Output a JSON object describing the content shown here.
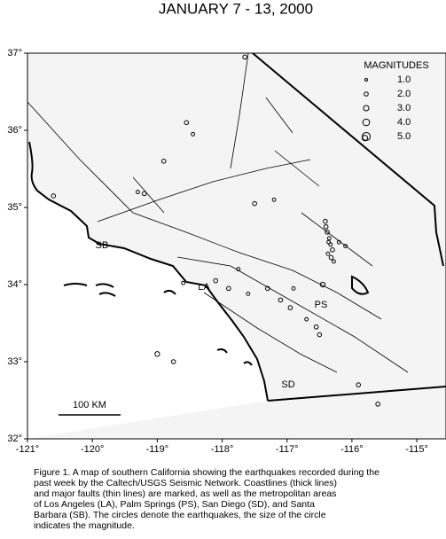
{
  "chart_data": {
    "type": "scatter",
    "title": "JANUARY 7 - 13, 2000",
    "xlim": [
      -121,
      -114.55
    ],
    "ylim": [
      32,
      37
    ],
    "xticks": [
      {
        "value": -121,
        "label": "-121°"
      },
      {
        "value": -120,
        "label": "-120°"
      },
      {
        "value": -119,
        "label": "-119°"
      },
      {
        "value": -118,
        "label": "-118°"
      },
      {
        "value": -117,
        "label": "-117°"
      },
      {
        "value": -116,
        "label": "-116°"
      },
      {
        "value": -115,
        "label": "-115°"
      }
    ],
    "yticks": [
      {
        "value": 32,
        "label": "32°"
      },
      {
        "value": 33,
        "label": "33°"
      },
      {
        "value": 34,
        "label": "34°"
      },
      {
        "value": 35,
        "label": "35°"
      },
      {
        "value": 36,
        "label": "36°"
      },
      {
        "value": 37,
        "label": "37°"
      }
    ],
    "legend_title": "MAGNITUDES",
    "legend": [
      {
        "value": 1,
        "label": "1.0"
      },
      {
        "value": 2,
        "label": "2.0"
      },
      {
        "value": 3,
        "label": "3.0"
      },
      {
        "value": 4,
        "label": "4.0"
      },
      {
        "value": 5,
        "label": "5.0"
      }
    ],
    "places": [
      "SB",
      "LA",
      "PS",
      "SD"
    ],
    "scale_label": "100 KM",
    "x": [
      -116.4,
      -116.38,
      -116.35,
      -116.33,
      -116.3,
      -116.37,
      -116.32,
      -116.28,
      -116.41,
      -116.36,
      -116.2,
      -116.1,
      -117.2,
      -117.5,
      -117.75,
      -118.1,
      -118.6,
      -118.9,
      -119.3,
      -119.2,
      -118.55,
      -118.45,
      -117.9,
      -117.6,
      -117.1,
      -116.95,
      -116.7,
      -116.55,
      -116.5,
      -116.9,
      -117.3,
      -116.45,
      -115.9,
      -115.6,
      -120.6,
      -119.0,
      -118.75,
      -117.65,
      -115.8
    ],
    "y": [
      34.75,
      34.68,
      34.6,
      34.52,
      34.45,
      34.4,
      34.35,
      34.3,
      34.82,
      34.55,
      34.55,
      34.5,
      35.1,
      35.05,
      34.2,
      34.05,
      34.02,
      35.6,
      35.2,
      35.18,
      36.1,
      35.95,
      33.95,
      33.88,
      33.8,
      33.7,
      33.55,
      33.45,
      33.35,
      33.95,
      33.95,
      34.0,
      32.7,
      32.45,
      35.15,
      33.1,
      33.0,
      36.95,
      35.9
    ],
    "sizes": [
      2,
      2,
      1.5,
      1.5,
      2,
      1.5,
      2,
      1.5,
      2,
      1.5,
      1.5,
      1.5,
      1.5,
      2,
      1.5,
      2,
      1.5,
      2,
      1.5,
      2,
      2,
      1.5,
      2,
      1.5,
      2,
      2,
      1.5,
      2,
      2,
      1.5,
      2,
      2.5,
      2,
      2,
      2,
      2.5,
      2,
      2,
      3
    ],
    "caption": [
      "Figure 1. A map of southern California showing the earthquakes recorded during the",
      "past week by the Caltech/USGS Seismic Network.  Coastlines (thick lines)",
      "and major faults (thin lines) are marked, as well as the metropolitan areas",
      "of Los Angeles (LA), Palm Springs (PS), San Diego (SD), and Santa",
      "Barbara (SB).  The circles denote the earthquakes, the size of the circle",
      "indicates the magnitude."
    ]
  }
}
